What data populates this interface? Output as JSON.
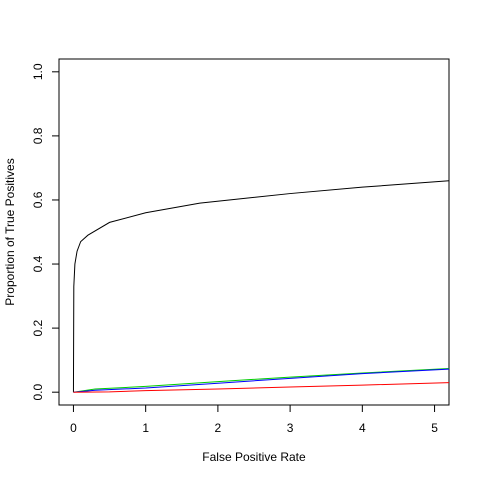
{
  "chart_data": {
    "type": "line",
    "title": "",
    "xlabel": "False Positive Rate",
    "ylabel": "Proportion of True Positives",
    "xlim": [
      -0.2,
      5.2
    ],
    "ylim": [
      -0.04,
      1.04
    ],
    "x_ticks": [
      0,
      1,
      2,
      3,
      4,
      5
    ],
    "y_ticks": [
      0.0,
      0.2,
      0.4,
      0.6,
      0.8,
      1.0
    ],
    "x_tick_labels": [
      "0",
      "1",
      "2",
      "3",
      "4",
      "5"
    ],
    "y_tick_labels": [
      "0.0",
      "0.2",
      "0.4",
      "0.6",
      "0.8",
      "1.0"
    ],
    "grid": false,
    "legend": "none",
    "series": [
      {
        "color": "#000000",
        "points": [
          [
            0,
            0
          ],
          [
            0.005,
            0.33
          ],
          [
            0.02,
            0.4
          ],
          [
            0.05,
            0.44
          ],
          [
            0.1,
            0.47
          ],
          [
            0.2,
            0.49
          ],
          [
            0.5,
            0.53
          ],
          [
            1.0,
            0.56
          ],
          [
            1.75,
            0.59
          ],
          [
            3.0,
            0.62
          ],
          [
            4.0,
            0.64
          ],
          [
            5.2,
            0.66
          ]
        ]
      },
      {
        "color": "#00cd00",
        "points": [
          [
            0,
            0
          ],
          [
            0.3,
            0.01
          ],
          [
            1.0,
            0.018
          ],
          [
            2.0,
            0.033
          ],
          [
            3.0,
            0.047
          ],
          [
            4.0,
            0.06
          ],
          [
            5.2,
            0.074
          ]
        ]
      },
      {
        "color": "#0000ff",
        "points": [
          [
            0,
            0
          ],
          [
            0.3,
            0.006
          ],
          [
            1.0,
            0.013
          ],
          [
            2.0,
            0.028
          ],
          [
            3.0,
            0.043
          ],
          [
            4.0,
            0.058
          ],
          [
            5.2,
            0.072
          ]
        ]
      },
      {
        "color": "#ff0000",
        "points": [
          [
            0,
            0
          ],
          [
            0.5,
            0.001
          ],
          [
            1.0,
            0.005
          ],
          [
            2.0,
            0.01
          ],
          [
            3.0,
            0.016
          ],
          [
            4.0,
            0.022
          ],
          [
            5.2,
            0.03
          ]
        ]
      }
    ]
  }
}
